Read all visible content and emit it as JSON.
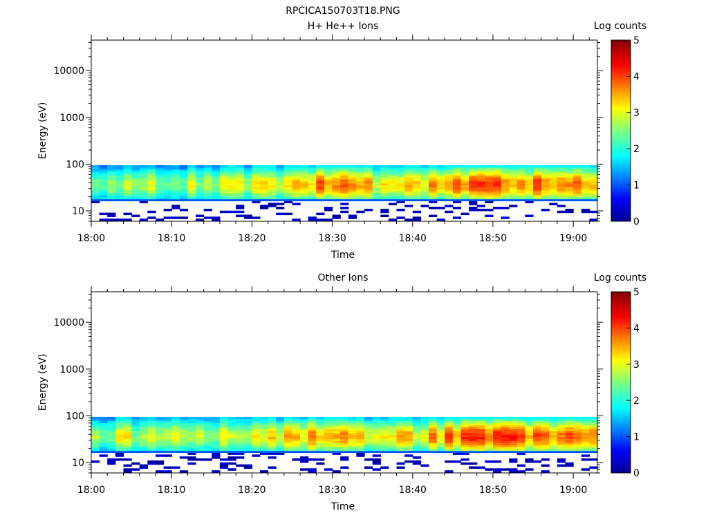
{
  "figure": {
    "title": "RPCICA150703T18.PNG"
  },
  "chart_data": [
    {
      "type": "heatmap",
      "title": "H+ He++ Ions",
      "xlabel": "Time",
      "ylabel": "Energy (eV)",
      "x_range": [
        "18:00",
        "19:03"
      ],
      "y_range": [
        6,
        45000
      ],
      "y_scale": "log",
      "x_ticks": [
        "18:00",
        "18:10",
        "18:20",
        "18:30",
        "18:40",
        "18:50",
        "19:00"
      ],
      "y_ticks": [
        "10",
        "100",
        "1000",
        "10000"
      ],
      "colorbar": {
        "label": "Log counts",
        "range": [
          0,
          5
        ],
        "ticks": [
          "0",
          "1",
          "2",
          "3",
          "4",
          "5"
        ],
        "colormap": "jet"
      },
      "energy_band_eV": [
        17,
        95
      ],
      "peak_log_counts_by_time": [
        {
          "time": "18:00",
          "value": 2.6
        },
        {
          "time": "18:05",
          "value": 2.8
        },
        {
          "time": "18:10",
          "value": 2.7
        },
        {
          "time": "18:15",
          "value": 2.8
        },
        {
          "time": "18:20",
          "value": 2.9
        },
        {
          "time": "18:25",
          "value": 3.3
        },
        {
          "time": "18:30",
          "value": 3.8
        },
        {
          "time": "18:35",
          "value": 3.1
        },
        {
          "time": "18:40",
          "value": 3.2
        },
        {
          "time": "18:46",
          "value": 3.9
        },
        {
          "time": "18:53",
          "value": 3.8
        },
        {
          "time": "19:00",
          "value": 3.5
        }
      ]
    },
    {
      "type": "heatmap",
      "title": "Other Ions",
      "xlabel": "Time",
      "ylabel": "Energy (eV)",
      "x_range": [
        "18:00",
        "19:03"
      ],
      "y_range": [
        6,
        45000
      ],
      "y_scale": "log",
      "x_ticks": [
        "18:00",
        "18:10",
        "18:20",
        "18:30",
        "18:40",
        "18:50",
        "19:00"
      ],
      "y_ticks": [
        "10",
        "100",
        "1000",
        "10000"
      ],
      "colorbar": {
        "label": "Log counts",
        "range": [
          0,
          5
        ],
        "ticks": [
          "0",
          "1",
          "2",
          "3",
          "4",
          "5"
        ],
        "colormap": "jet"
      },
      "energy_band_eV": [
        17,
        95
      ],
      "peak_log_counts_by_time": [
        {
          "time": "18:00",
          "value": 2.6
        },
        {
          "time": "18:05",
          "value": 2.8
        },
        {
          "time": "18:10",
          "value": 2.7
        },
        {
          "time": "18:15",
          "value": 2.8
        },
        {
          "time": "18:20",
          "value": 2.9
        },
        {
          "time": "18:25",
          "value": 3.3
        },
        {
          "time": "18:30",
          "value": 3.9
        },
        {
          "time": "18:35",
          "value": 3.1
        },
        {
          "time": "18:40",
          "value": 3.2
        },
        {
          "time": "18:46",
          "value": 3.9
        },
        {
          "time": "18:53",
          "value": 3.8
        },
        {
          "time": "19:00",
          "value": 3.5
        }
      ]
    }
  ]
}
